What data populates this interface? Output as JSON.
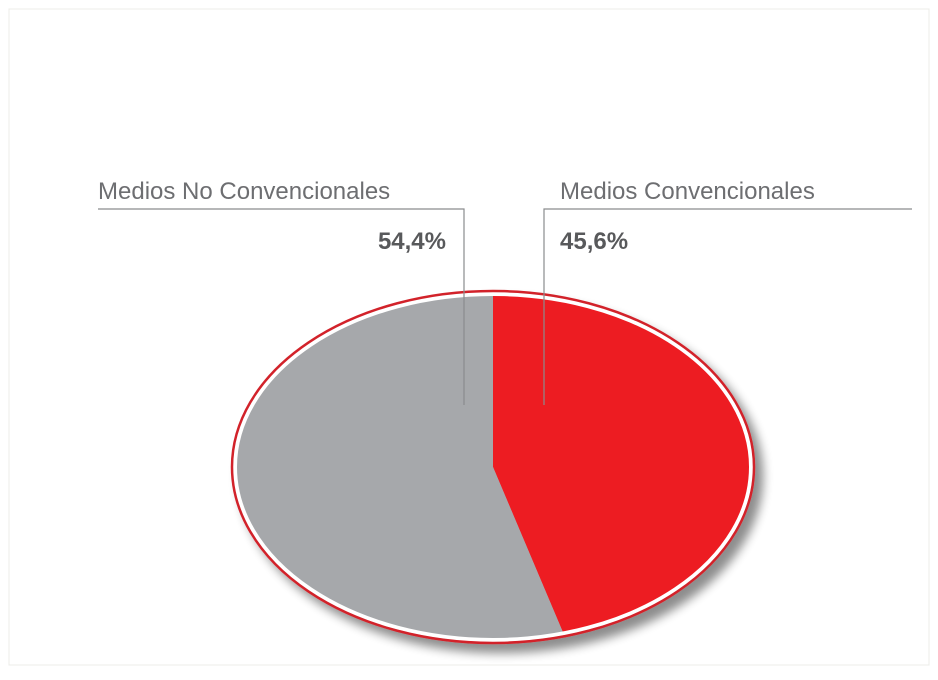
{
  "chart_data": {
    "type": "pie",
    "series": [
      {
        "name": "Medios No Convencionales",
        "value": 54.4,
        "label": "54,4%",
        "color": "#a6a8ab"
      },
      {
        "name": "Medios Convencionales",
        "value": 45.6,
        "label": "45,6%",
        "color": "#ed1c24"
      }
    ],
    "unit": "%",
    "start_angle": "12 o'clock",
    "direction": "clockwise, red slice first",
    "outline_color": "#d2232a",
    "style": "3D tilted ellipse with drop shadow"
  }
}
